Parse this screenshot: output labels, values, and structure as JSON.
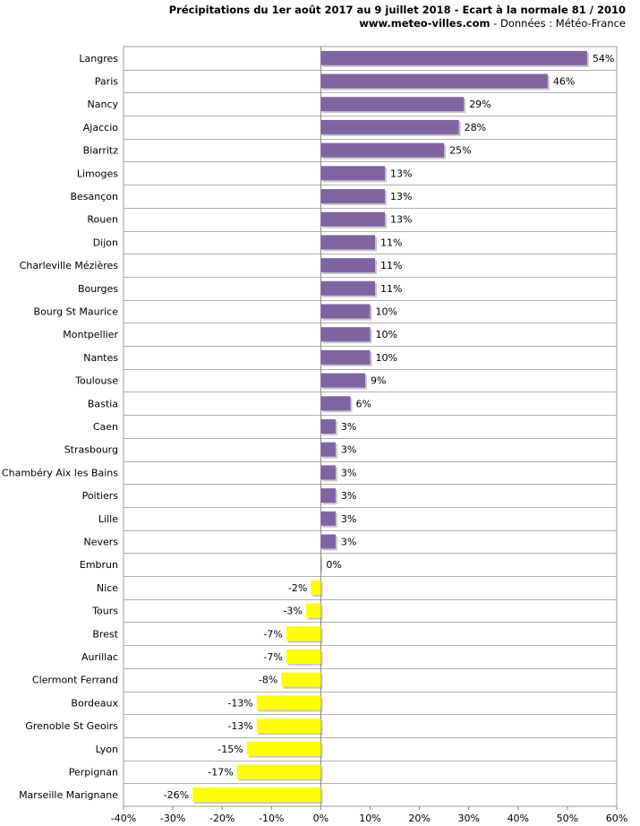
{
  "header": {
    "title": "Précipitations du 1er août 2017 au 9 juillet 2018 - Ecart à la normale 81 / 2010",
    "site": "www.meteo-villes.com",
    "source": " - Données : Météo-France"
  },
  "chart_data": {
    "type": "bar",
    "orientation": "horizontal",
    "xlim": [
      -40,
      60
    ],
    "xticks": [
      "-40%",
      "-30%",
      "-20%",
      "-10%",
      "0%",
      "10%",
      "20%",
      "30%",
      "40%",
      "50%",
      "60%"
    ],
    "grid": true,
    "positive_color": "#8064a2",
    "negative_color": "#ffff00",
    "categories": [
      "Langres",
      "Paris",
      "Nancy",
      "Ajaccio",
      "Biarritz",
      "Limoges",
      "Besançon",
      "Rouen",
      "Dijon",
      "Charleville Mézières",
      "Bourges",
      "Bourg St Maurice",
      "Montpellier",
      "Nantes",
      "Toulouse",
      "Bastia",
      "Caen",
      "Strasbourg",
      "Chambéry Aix les Bains",
      "Poitiers",
      "Lille",
      "Nevers",
      "Embrun",
      "Nice",
      "Tours",
      "Brest",
      "Aurillac",
      "Clermont Ferrand",
      "Bordeaux",
      "Grenoble St Geoirs",
      "Lyon",
      "Perpignan",
      "Marseille Marignane"
    ],
    "values": [
      54,
      46,
      29,
      28,
      25,
      13,
      13,
      13,
      11,
      11,
      11,
      10,
      10,
      10,
      9,
      6,
      3,
      3,
      3,
      3,
      3,
      3,
      0,
      -2,
      -3,
      -7,
      -7,
      -8,
      -13,
      -13,
      -15,
      -17,
      -26
    ],
    "labels": [
      "54%",
      "46%",
      "29%",
      "28%",
      "25%",
      "13%",
      "13%",
      "13%",
      "11%",
      "11%",
      "11%",
      "10%",
      "10%",
      "10%",
      "9%",
      "6%",
      "3%",
      "3%",
      "3%",
      "3%",
      "3%",
      "3%",
      "0%",
      "-2%",
      "-3%",
      "-7%",
      "-7%",
      "-8%",
      "-13%",
      "-13%",
      "-15%",
      "-17%",
      "-26%"
    ]
  }
}
